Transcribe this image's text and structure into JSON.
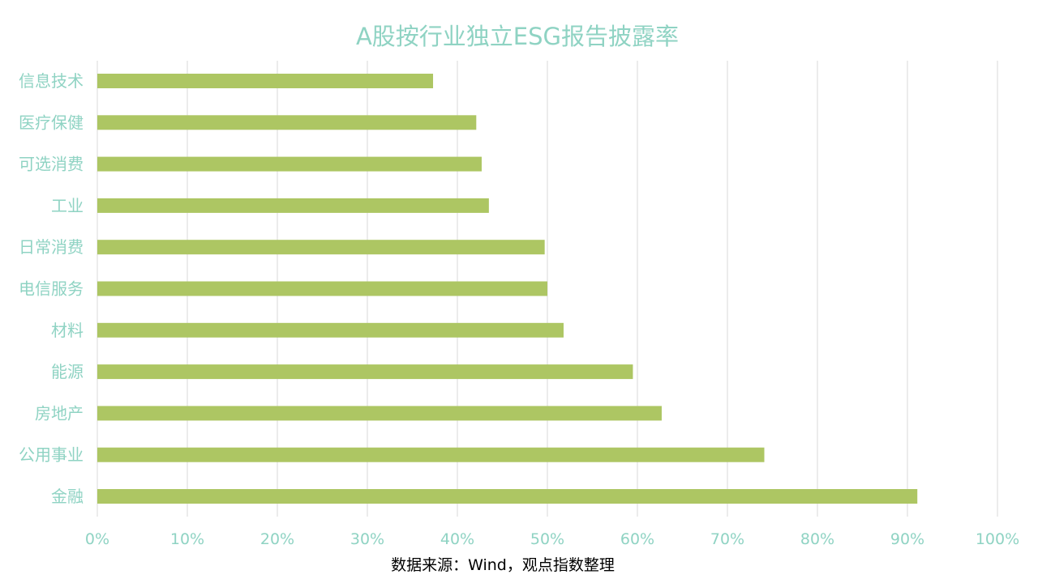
{
  "chart_data": {
    "type": "bar",
    "orientation": "horizontal",
    "title": "A股按行业独立ESG报告披露率",
    "categories": [
      "信息技术",
      "医疗保健",
      "可选消费",
      "工业",
      "日常消费",
      "电信服务",
      "材料",
      "能源",
      "房地产",
      "公用事业",
      "金融"
    ],
    "values": [
      37.3,
      42.1,
      42.7,
      43.5,
      49.7,
      50.0,
      51.8,
      59.5,
      62.7,
      74.1,
      91.1
    ],
    "xlim": [
      0,
      100
    ],
    "x_ticks": [
      0,
      10,
      20,
      30,
      40,
      50,
      60,
      70,
      80,
      90,
      100
    ],
    "tick_suffix": "%",
    "grid": "vertical",
    "legend": "none",
    "source_note": "数据来源：Wind，观点指数整理",
    "colors": {
      "bar": "#adc663",
      "text": "#8fd3c3",
      "grid": "#d9d9d9",
      "source": "#000000"
    }
  }
}
